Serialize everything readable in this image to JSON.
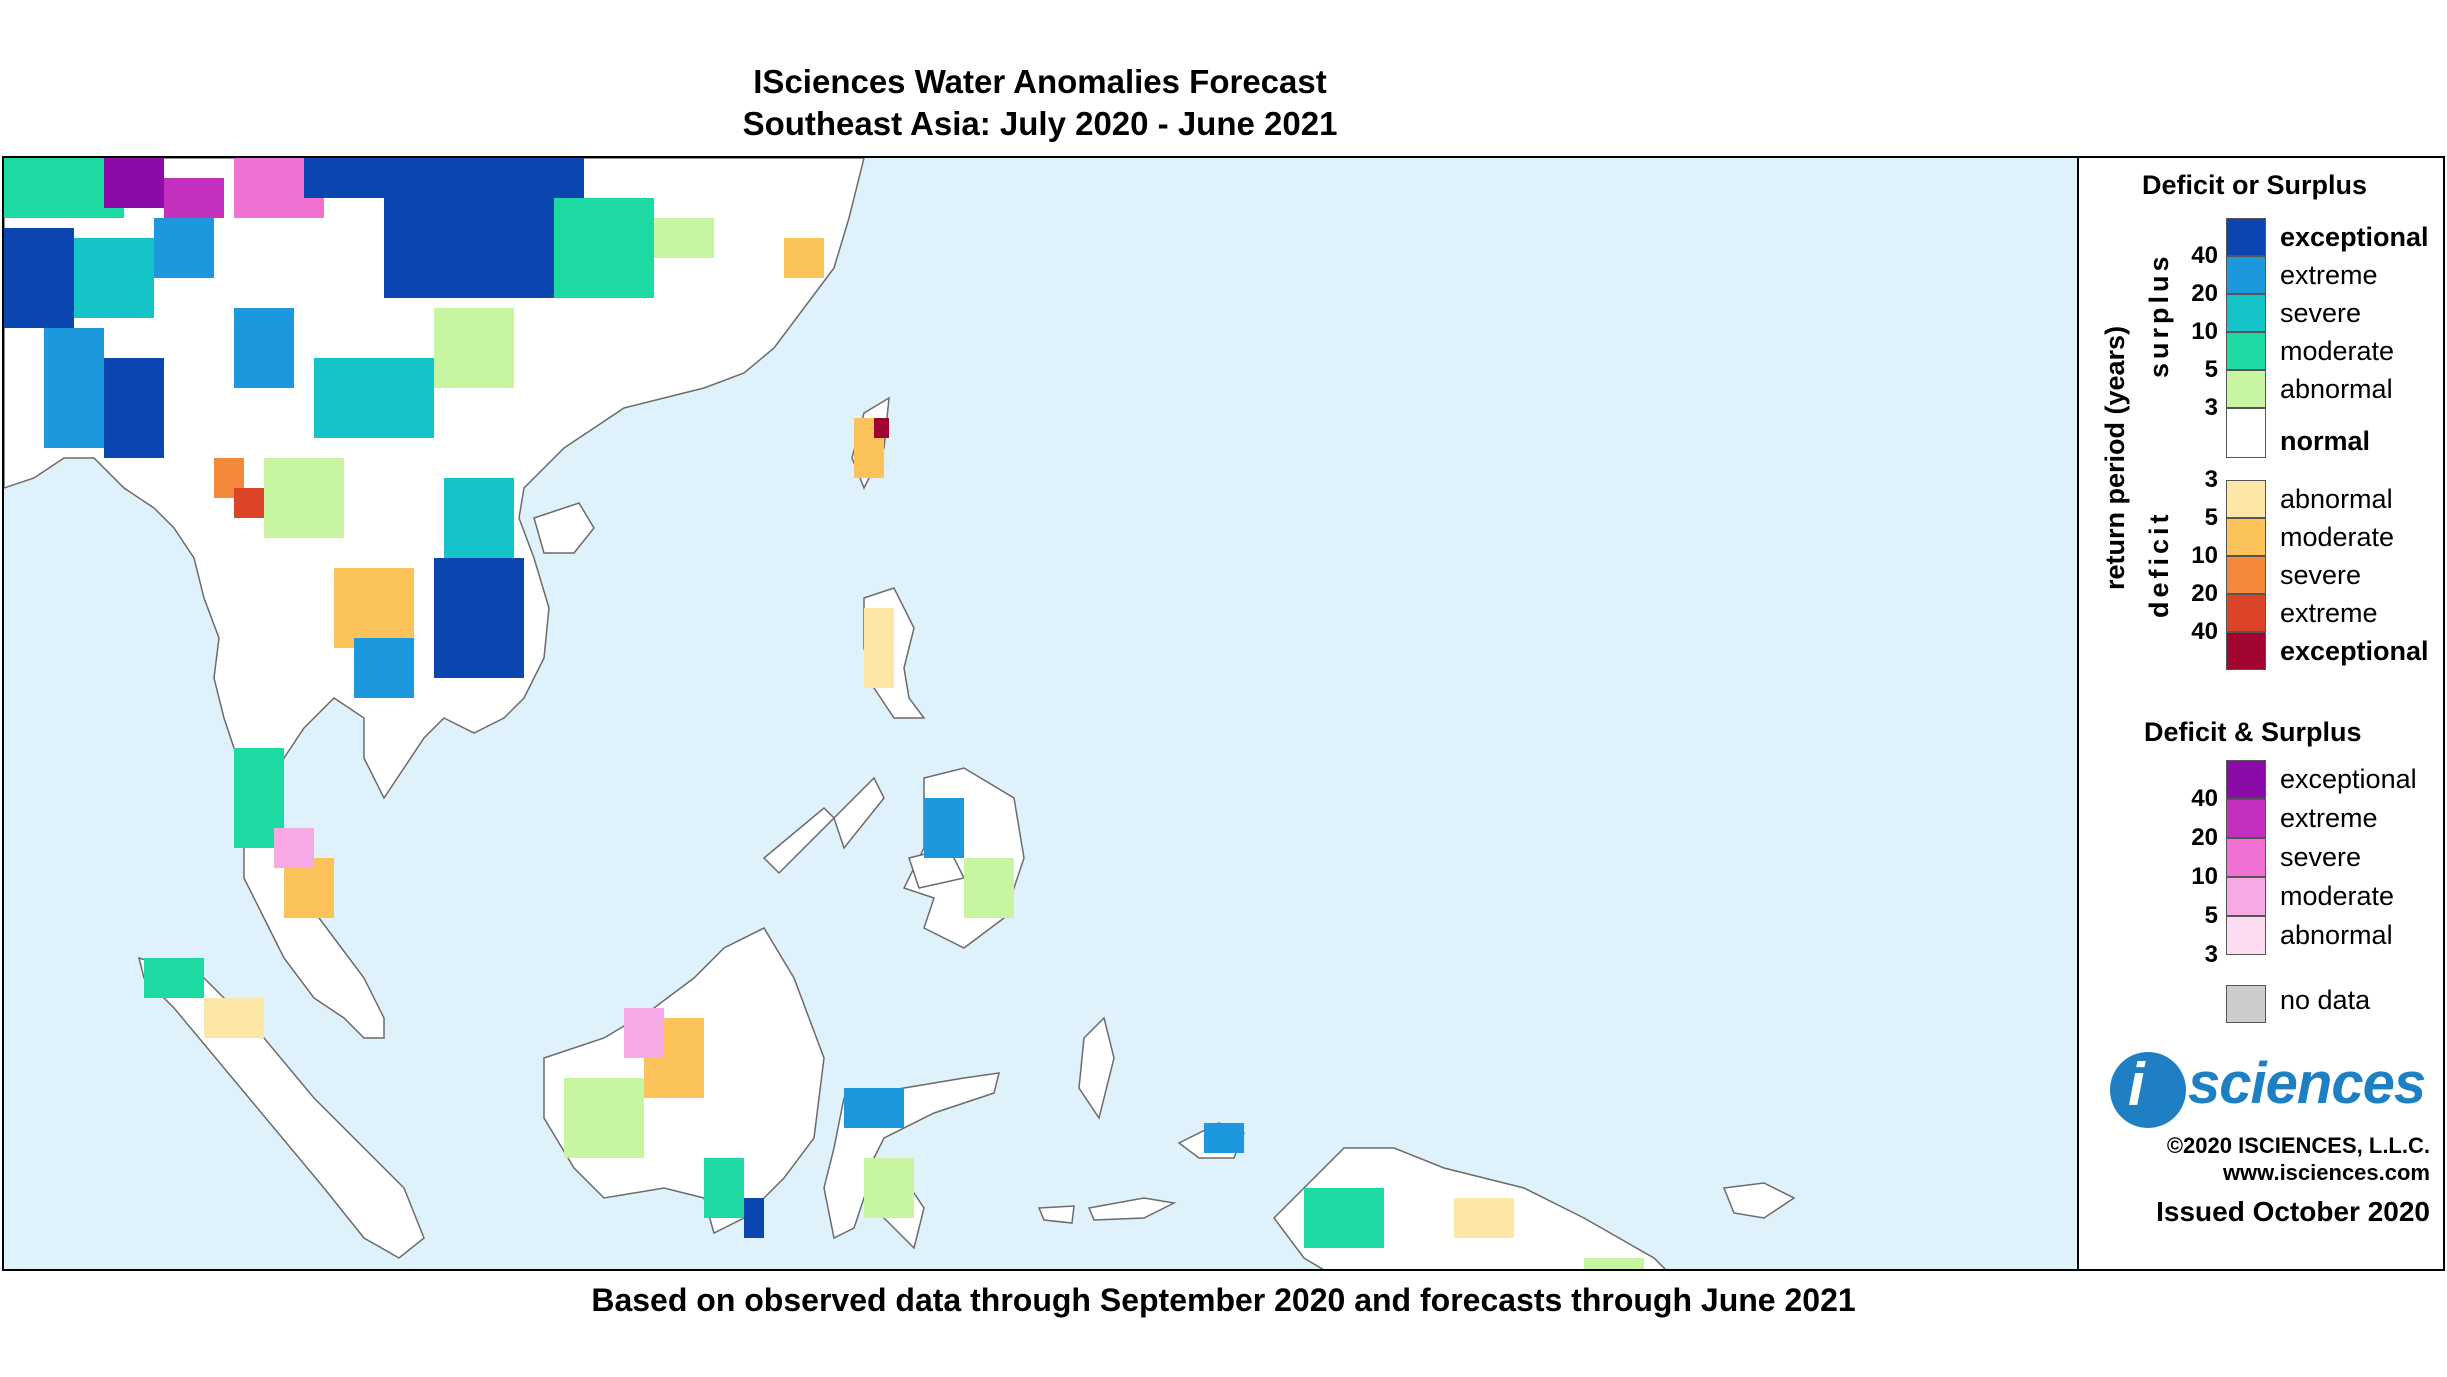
{
  "title_line1": "ISciences Water Anomalies Forecast",
  "title_line2": "Southeast Asia: July 2020 - June 2021",
  "footer": "Based on observed data through September 2020 and forecasts through June 2021",
  "legend": {
    "deficit_or_surplus_title": "Deficit or Surplus",
    "axis_label": "return period (years)",
    "surplus_label": "surplus",
    "deficit_label": "deficit",
    "surplus_classes": [
      {
        "label": "exceptional",
        "color": "#0a45b0",
        "bold": true
      },
      {
        "label": "extreme",
        "color": "#1d97dd"
      },
      {
        "label": "severe",
        "color": "#14c4c8"
      },
      {
        "label": "moderate",
        "color": "#1dd9a2"
      },
      {
        "label": "abnormal",
        "color": "#c7f5a2"
      }
    ],
    "surplus_ticks": [
      "40",
      "20",
      "10",
      "5",
      "3"
    ],
    "normal": {
      "label": "normal",
      "color": "#ffffff"
    },
    "deficit_classes": [
      {
        "label": "abnormal",
        "color": "#fde7a7"
      },
      {
        "label": "moderate",
        "color": "#fcc35a"
      },
      {
        "label": "severe",
        "color": "#f4883a"
      },
      {
        "label": "extreme",
        "color": "#db4427"
      },
      {
        "label": "exceptional",
        "color": "#a1052f",
        "bold": true
      }
    ],
    "deficit_ticks": [
      "3",
      "5",
      "10",
      "20",
      "40"
    ],
    "both_title": "Deficit & Surplus",
    "both_classes": [
      {
        "label": "exceptional",
        "color": "#8b0aa8"
      },
      {
        "label": "extreme",
        "color": "#c430be"
      },
      {
        "label": "severe",
        "color": "#f170d4"
      },
      {
        "label": "moderate",
        "color": "#f6a9e5"
      },
      {
        "label": "abnormal",
        "color": "#fbdcf1"
      }
    ],
    "both_ticks": [
      "40",
      "20",
      "10",
      "5",
      "3"
    ],
    "no_data": {
      "label": "no data",
      "color": "#cccccc"
    }
  },
  "logo": {
    "letter": "i",
    "word": "sciences"
  },
  "copyright": "©2020 ISCIENCES, L.L.C.",
  "website": "www.isciences.com",
  "issued": "Issued October 2020",
  "colors": {
    "ocean": "#dff2fb",
    "land": "#ffffff",
    "coast": "#6b6b6b"
  }
}
